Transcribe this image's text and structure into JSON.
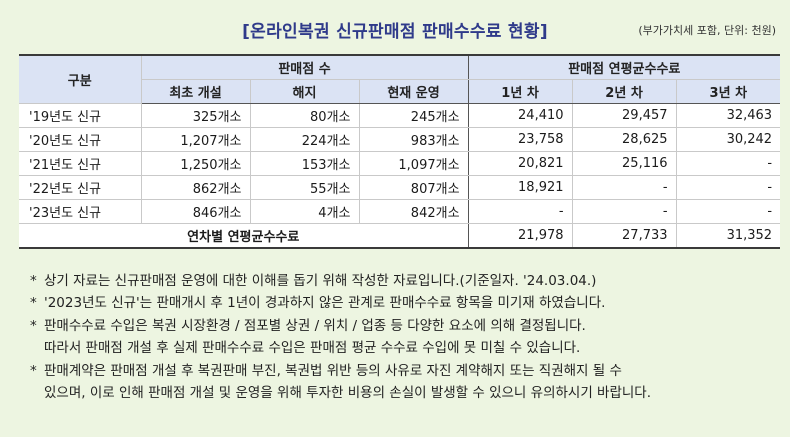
{
  "title": "[온라인복권 신규판매점 판매수수료 현황]",
  "unit_note": "(부가가치세 포함, 단위: 천원)",
  "table": {
    "header_category": "구분",
    "header_group1": "판매점 수",
    "header_group2": "판매점 연평균수수료",
    "subheaders": [
      "최초 개설",
      "해지",
      "현재 운영",
      "1년 차",
      "2년 차",
      "3년 차"
    ],
    "rows": [
      {
        "label": "'19년도 신규",
        "cells": [
          "325개소",
          "80개소",
          "245개소",
          "24,410",
          "29,457",
          "32,463"
        ]
      },
      {
        "label": "'20년도 신규",
        "cells": [
          "1,207개소",
          "224개소",
          "983개소",
          "23,758",
          "28,625",
          "30,242"
        ]
      },
      {
        "label": "'21년도 신규",
        "cells": [
          "1,250개소",
          "153개소",
          "1,097개소",
          "20,821",
          "25,116",
          "-"
        ]
      },
      {
        "label": "'22년도 신규",
        "cells": [
          "862개소",
          "55개소",
          "807개소",
          "18,921",
          "-",
          "-"
        ]
      },
      {
        "label": "'23년도 신규",
        "cells": [
          "846개소",
          "4개소",
          "842개소",
          "-",
          "-",
          "-"
        ]
      }
    ],
    "total_label": "연차별 연평균수수료",
    "total_cells": [
      "21,978",
      "27,733",
      "31,352"
    ]
  },
  "notes": [
    {
      "star": "*",
      "text": "상기 자료는 신규판매점 운영에 대한 이해를 돕기 위해 작성한 자료입니다.(기준일자. '24.03.04.)"
    },
    {
      "star": "*",
      "text": "'2023년도 신규'는 판매개시 후 1년이 경과하지 않은 관계로 판매수수료 항목을 미기재 하였습니다."
    },
    {
      "star": "*",
      "text": "판매수수료 수입은 복권 시장환경 / 점포별 상권 / 위치 / 업종 등 다양한 요소에 의해 결정됩니다.",
      "text2": "따라서 판매점 개설 후 실제 판매수수료 수입은 판매점 평균 수수료 수입에 못 미칠 수 있습니다."
    },
    {
      "star": "*",
      "text": "판매계약은 판매점 개설 후 복권판매 부진, 복권법 위반 등의 사유로 자진 계약해지 또는 직권해지 될 수",
      "text2": "있으며, 이로 인해 판매점 개설 및 운영을 위해 투자한 비용의 손실이 발생할 수 있으니 유의하시기 바랍니다."
    }
  ]
}
